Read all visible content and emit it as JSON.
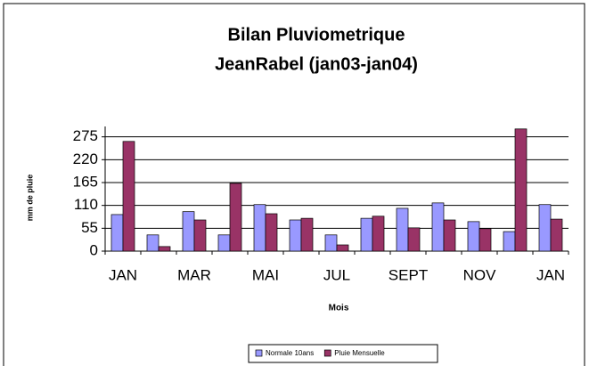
{
  "chart_data": {
    "type": "bar",
    "title": [
      "Bilan Pluviometrique",
      "JeanRabel (jan03-jan04)"
    ],
    "y_label": "mm de pluie",
    "x_label": "Mois",
    "categories": [
      "JAN",
      null,
      "MAR",
      null,
      "MAI",
      null,
      "JUL",
      null,
      "SEPT",
      null,
      "NOV",
      null,
      "JAN"
    ],
    "series": [
      {
        "name": "Normale 10ans",
        "color": "#9999ff",
        "values": [
          88,
          39,
          95,
          39,
          112,
          75,
          39,
          79,
          103,
          116,
          71,
          47,
          112
        ]
      },
      {
        "name": "Pluie Mensuelle",
        "color": "#993366",
        "values": [
          264,
          11,
          75,
          163,
          90,
          79,
          15,
          84,
          56,
          75,
          54,
          294,
          77
        ]
      }
    ],
    "ylim": [
      0,
      300
    ],
    "yticks": [
      0,
      55,
      110,
      165,
      220,
      275
    ],
    "grid": true,
    "legend": "bottom"
  }
}
